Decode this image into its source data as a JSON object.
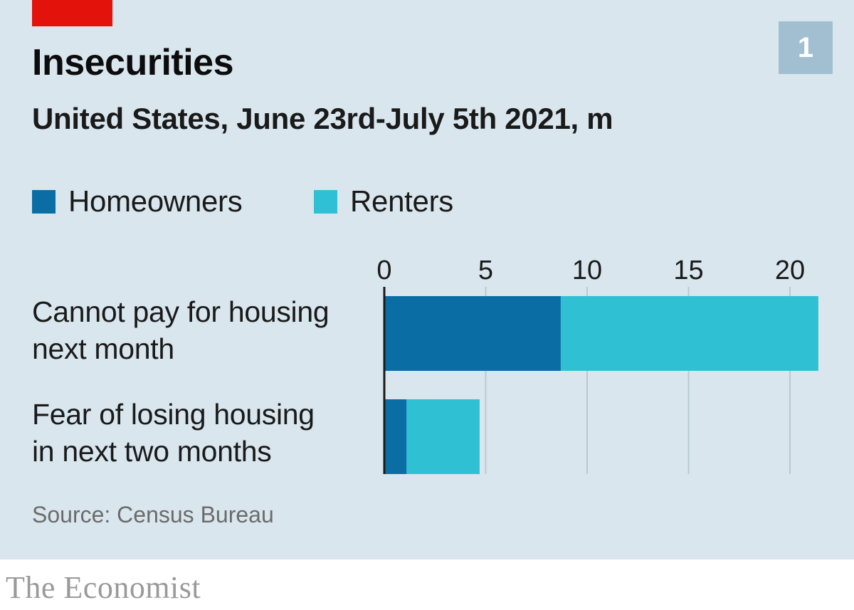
{
  "header": {
    "title": "Insecurities",
    "subtitle": "United States, June 23rd-July 5th 2021, m",
    "chart_number": "1"
  },
  "footer": {
    "source": "Source: Census Bureau",
    "brand": "The Economist"
  },
  "colors": {
    "homeowners": "#0a6ea4",
    "renters": "#2fc1d3",
    "gridline": "#b9c9d3",
    "axis": "#1a1a1a"
  },
  "chart_data": {
    "type": "bar",
    "orientation": "horizontal",
    "stacked": true,
    "title": "Insecurities",
    "subtitle": "United States, June 23rd-July 5th 2021, m",
    "xlabel": "",
    "ylabel": "",
    "xlim": [
      0,
      22
    ],
    "ticks": [
      0,
      5,
      10,
      15,
      20
    ],
    "tick_labels": [
      "0",
      "5",
      "10",
      "15",
      "20"
    ],
    "grid": true,
    "legend_position": "top-left",
    "categories": [
      [
        "Cannot pay for housing",
        "next month"
      ],
      [
        "Fear of losing housing",
        "in next two months"
      ]
    ],
    "series": [
      {
        "name": "Homeowners",
        "values": [
          8.7,
          1.1
        ]
      },
      {
        "name": "Renters",
        "values": [
          12.7,
          3.6
        ]
      }
    ]
  }
}
